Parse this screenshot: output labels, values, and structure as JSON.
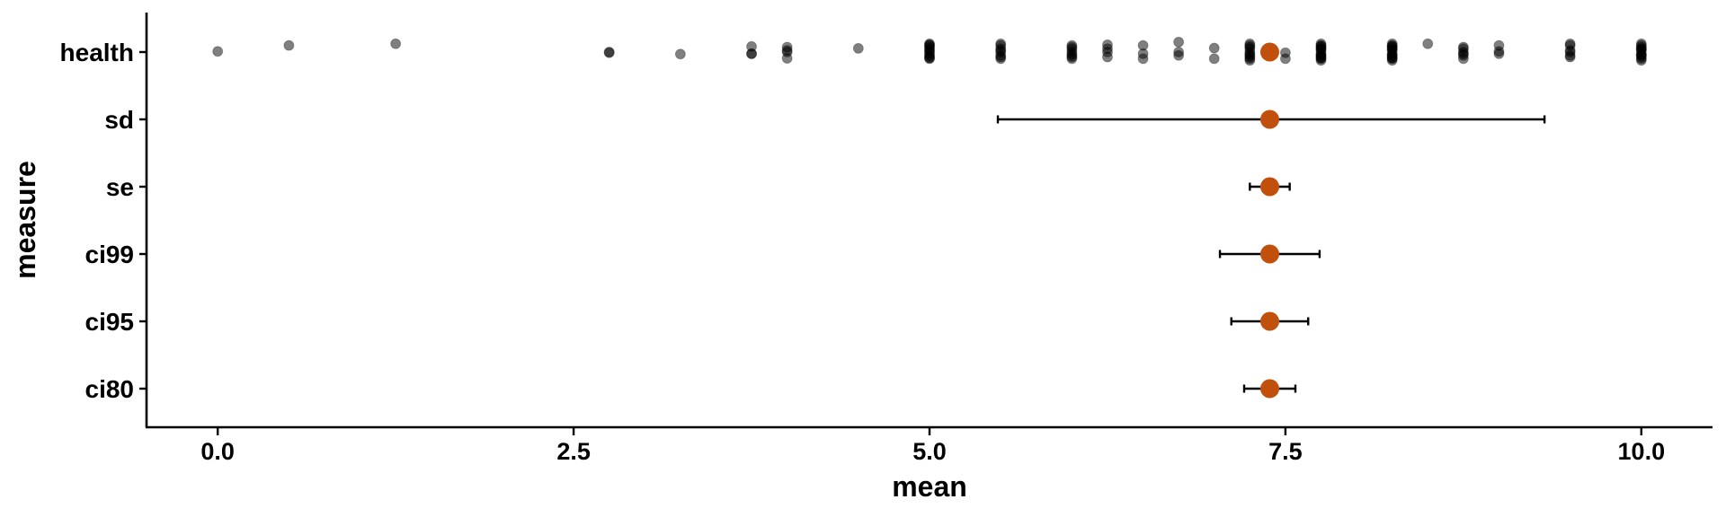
{
  "chart_data": {
    "type": "scatter",
    "xlabel": "mean",
    "ylabel": "measure",
    "xlim": [
      -0.5,
      10.5
    ],
    "x_ticks": [
      0.0,
      2.5,
      5.0,
      7.5,
      10.0
    ],
    "x_tick_labels": [
      "0.0",
      "2.5",
      "5.0",
      "7.5",
      "10.0"
    ],
    "categories": [
      "health",
      "sd",
      "se",
      "ci99",
      "ci95",
      "ci80"
    ],
    "grid": false,
    "legend": "none",
    "colors": {
      "mean_point": "#c0500c",
      "raw_point": "#000000",
      "error_bar": "#000000"
    },
    "raw_points": {
      "category": "health",
      "x": [
        0.0,
        0.5,
        1.25,
        2.75,
        2.75,
        3.25,
        3.75,
        3.75,
        3.75,
        4.0,
        4.0,
        4.0,
        4.0,
        4.5,
        5.0,
        5.0,
        5.0,
        5.0,
        5.0,
        5.0,
        5.0,
        5.0,
        5.0,
        5.0,
        5.0,
        5.0,
        5.5,
        5.5,
        5.5,
        5.5,
        5.5,
        5.5,
        5.5,
        5.5,
        6.0,
        6.0,
        6.0,
        6.0,
        6.0,
        6.0,
        6.0,
        6.0,
        6.25,
        6.25,
        6.25,
        6.25,
        6.5,
        6.5,
        6.5,
        6.75,
        6.75,
        6.75,
        7.0,
        7.0,
        7.25,
        7.25,
        7.25,
        7.25,
        7.25,
        7.25,
        7.25,
        7.25,
        7.25,
        7.25,
        7.5,
        7.5,
        7.75,
        7.75,
        7.75,
        7.75,
        7.75,
        7.75,
        7.75,
        7.75,
        7.75,
        7.75,
        7.75,
        7.75,
        7.75,
        7.75,
        8.25,
        8.25,
        8.25,
        8.25,
        8.25,
        8.25,
        8.25,
        8.25,
        8.25,
        8.25,
        8.25,
        8.25,
        8.25,
        8.25,
        8.5,
        8.75,
        8.75,
        8.75,
        8.75,
        8.75,
        8.75,
        9.0,
        9.0,
        9.0,
        9.5,
        9.5,
        9.5,
        9.5,
        9.5,
        9.5,
        10.0,
        10.0,
        10.0,
        10.0,
        10.0,
        10.0,
        10.0,
        10.0,
        10.0,
        10.0,
        10.0,
        10.0
      ],
      "jitter": [
        0.02,
        0.2,
        0.25,
        -0.02,
        0.0,
        -0.06,
        -0.05,
        -0.05,
        0.17,
        0.0,
        -0.19,
        0.05,
        0.15,
        0.11,
        0.01,
        0.05,
        -0.1,
        0.1,
        -0.15,
        0.2,
        -0.05,
        0.15,
        -0.18,
        0.22,
        -0.2,
        0.25,
        0.1,
        0.0,
        -0.1,
        0.2,
        -0.2,
        0.25,
        -0.15,
        0.05,
        -0.1,
        0.1,
        0.2,
        -0.2,
        0.02,
        -0.05,
        -0.15,
        0.15,
        0.0,
        0.1,
        0.22,
        -0.15,
        -0.05,
        -0.2,
        0.2,
        0.3,
        0.0,
        -0.1,
        0.12,
        -0.2,
        -0.1,
        0.1,
        0.2,
        -0.2,
        0.0,
        -0.05,
        -0.15,
        0.15,
        0.25,
        -0.25,
        -0.02,
        -0.2,
        0.1,
        0.2,
        -0.1,
        0.25,
        -0.2,
        -0.25,
        0.15,
        0.05,
        -0.05,
        -0.15,
        0.08,
        -0.08,
        0.18,
        -0.18,
        0.1,
        0.2,
        -0.1,
        0.25,
        -0.2,
        -0.25,
        0.15,
        0.05,
        -0.05,
        -0.15,
        0.08,
        -0.08,
        0.18,
        -0.18,
        0.25,
        0.15,
        -0.2,
        0.0,
        0.1,
        -0.1,
        -0.05,
        0.02,
        0.2,
        -0.05,
        -0.1,
        0.2,
        0.25,
        0.0,
        -0.15,
        0.05,
        0.1,
        0.2,
        -0.1,
        0.25,
        -0.2,
        -0.25,
        0.15,
        0.05,
        -0.05,
        -0.15,
        0.08,
        -0.08
      ]
    },
    "summary": {
      "mean": 7.39,
      "intervals": [
        {
          "category": "sd",
          "low": 5.48,
          "high": 9.32
        },
        {
          "category": "se",
          "low": 7.25,
          "high": 7.53
        },
        {
          "category": "ci99",
          "low": 7.04,
          "high": 7.74
        },
        {
          "category": "ci95",
          "low": 7.12,
          "high": 7.66
        },
        {
          "category": "ci80",
          "low": 7.21,
          "high": 7.57
        }
      ]
    }
  }
}
